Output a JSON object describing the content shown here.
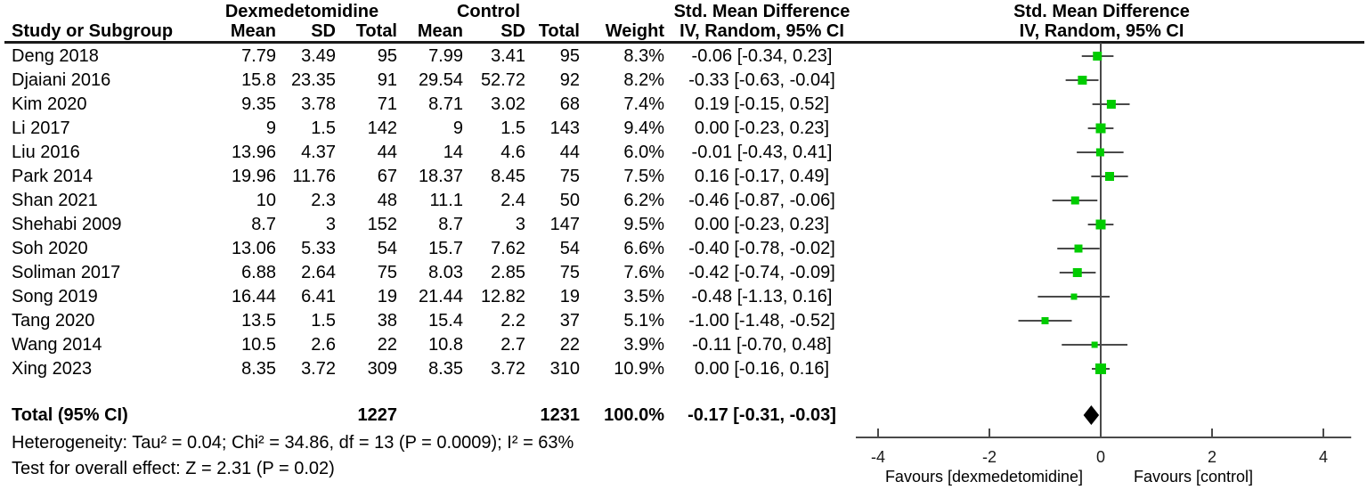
{
  "header": {
    "group1": "Dexmedetomidine",
    "group2": "Control",
    "effect_label": "Std. Mean Difference",
    "method_label": "IV, Random, 95% CI",
    "plot_effect_label": "Std. Mean Difference",
    "plot_method_label": "IV, Random, 95% CI",
    "columns": {
      "study": "Study or Subgroup",
      "mean1": "Mean",
      "sd1": "SD",
      "total1": "Total",
      "mean2": "Mean",
      "sd2": "SD",
      "total2": "Total",
      "weight": "Weight"
    }
  },
  "chart_data": {
    "type": "forest",
    "title": "Std. Mean Difference, IV, Random, 95% CI",
    "x_axis": {
      "ticks": [
        -4,
        -2,
        0,
        2,
        4
      ],
      "xlim": [
        -4.4,
        4.5
      ],
      "zero_line": 0
    },
    "favours_left": "Favours [dexmedetomidine]",
    "favours_right": "Favours [control]",
    "studies": [
      {
        "name": "Deng 2018",
        "mean1": "7.79",
        "sd1": "3.49",
        "n1": "95",
        "mean2": "7.99",
        "sd2": "3.41",
        "n2": "95",
        "weight": "8.3%",
        "weight_pct": 8.3,
        "smd": -0.06,
        "ci_low": -0.34,
        "ci_high": 0.23,
        "ci_label": "-0.06 [-0.34, 0.23]"
      },
      {
        "name": "Djaiani 2016",
        "mean1": "15.8",
        "sd1": "23.35",
        "n1": "91",
        "mean2": "29.54",
        "sd2": "52.72",
        "n2": "92",
        "weight": "8.2%",
        "weight_pct": 8.2,
        "smd": -0.33,
        "ci_low": -0.63,
        "ci_high": -0.04,
        "ci_label": "-0.33 [-0.63, -0.04]"
      },
      {
        "name": "Kim 2020",
        "mean1": "9.35",
        "sd1": "3.78",
        "n1": "71",
        "mean2": "8.71",
        "sd2": "3.02",
        "n2": "68",
        "weight": "7.4%",
        "weight_pct": 7.4,
        "smd": 0.19,
        "ci_low": -0.15,
        "ci_high": 0.52,
        "ci_label": "0.19 [-0.15, 0.52]"
      },
      {
        "name": "Li 2017",
        "mean1": "9",
        "sd1": "1.5",
        "n1": "142",
        "mean2": "9",
        "sd2": "1.5",
        "n2": "143",
        "weight": "9.4%",
        "weight_pct": 9.4,
        "smd": 0.0,
        "ci_low": -0.23,
        "ci_high": 0.23,
        "ci_label": "0.00 [-0.23, 0.23]"
      },
      {
        "name": "Liu 2016",
        "mean1": "13.96",
        "sd1": "4.37",
        "n1": "44",
        "mean2": "14",
        "sd2": "4.6",
        "n2": "44",
        "weight": "6.0%",
        "weight_pct": 6.0,
        "smd": -0.01,
        "ci_low": -0.43,
        "ci_high": 0.41,
        "ci_label": "-0.01 [-0.43, 0.41]"
      },
      {
        "name": "Park 2014",
        "mean1": "19.96",
        "sd1": "11.76",
        "n1": "67",
        "mean2": "18.37",
        "sd2": "8.45",
        "n2": "75",
        "weight": "7.5%",
        "weight_pct": 7.5,
        "smd": 0.16,
        "ci_low": -0.17,
        "ci_high": 0.49,
        "ci_label": "0.16 [-0.17, 0.49]"
      },
      {
        "name": "Shan 2021",
        "mean1": "10",
        "sd1": "2.3",
        "n1": "48",
        "mean2": "11.1",
        "sd2": "2.4",
        "n2": "50",
        "weight": "6.2%",
        "weight_pct": 6.2,
        "smd": -0.46,
        "ci_low": -0.87,
        "ci_high": -0.06,
        "ci_label": "-0.46 [-0.87, -0.06]"
      },
      {
        "name": "Shehabi 2009",
        "mean1": "8.7",
        "sd1": "3",
        "n1": "152",
        "mean2": "8.7",
        "sd2": "3",
        "n2": "147",
        "weight": "9.5%",
        "weight_pct": 9.5,
        "smd": 0.0,
        "ci_low": -0.23,
        "ci_high": 0.23,
        "ci_label": "0.00 [-0.23, 0.23]"
      },
      {
        "name": "Soh 2020",
        "mean1": "13.06",
        "sd1": "5.33",
        "n1": "54",
        "mean2": "15.7",
        "sd2": "7.62",
        "n2": "54",
        "weight": "6.6%",
        "weight_pct": 6.6,
        "smd": -0.4,
        "ci_low": -0.78,
        "ci_high": -0.02,
        "ci_label": "-0.40 [-0.78, -0.02]"
      },
      {
        "name": "Soliman 2017",
        "mean1": "6.88",
        "sd1": "2.64",
        "n1": "75",
        "mean2": "8.03",
        "sd2": "2.85",
        "n2": "75",
        "weight": "7.6%",
        "weight_pct": 7.6,
        "smd": -0.42,
        "ci_low": -0.74,
        "ci_high": -0.09,
        "ci_label": "-0.42 [-0.74, -0.09]"
      },
      {
        "name": "Song 2019",
        "mean1": "16.44",
        "sd1": "6.41",
        "n1": "19",
        "mean2": "21.44",
        "sd2": "12.82",
        "n2": "19",
        "weight": "3.5%",
        "weight_pct": 3.5,
        "smd": -0.48,
        "ci_low": -1.13,
        "ci_high": 0.16,
        "ci_label": "-0.48 [-1.13, 0.16]"
      },
      {
        "name": "Tang 2020",
        "mean1": "13.5",
        "sd1": "1.5",
        "n1": "38",
        "mean2": "15.4",
        "sd2": "2.2",
        "n2": "37",
        "weight": "5.1%",
        "weight_pct": 5.1,
        "smd": -1.0,
        "ci_low": -1.48,
        "ci_high": -0.52,
        "ci_label": "-1.00 [-1.48, -0.52]"
      },
      {
        "name": "Wang 2014",
        "mean1": "10.5",
        "sd1": "2.6",
        "n1": "22",
        "mean2": "10.8",
        "sd2": "2.7",
        "n2": "22",
        "weight": "3.9%",
        "weight_pct": 3.9,
        "smd": -0.11,
        "ci_low": -0.7,
        "ci_high": 0.48,
        "ci_label": "-0.11 [-0.70, 0.48]"
      },
      {
        "name": "Xing 2023",
        "mean1": "8.35",
        "sd1": "3.72",
        "n1": "309",
        "mean2": "8.35",
        "sd2": "3.72",
        "n2": "310",
        "weight": "10.9%",
        "weight_pct": 10.9,
        "smd": 0.0,
        "ci_low": -0.16,
        "ci_high": 0.16,
        "ci_label": "0.00 [-0.16, 0.16]"
      }
    ],
    "total": {
      "label": "Total (95% CI)",
      "n1": "1227",
      "n2": "1231",
      "weight": "100.0%",
      "smd": -0.17,
      "ci_low": -0.31,
      "ci_high": -0.03,
      "ci_label": "-0.17 [-0.31, -0.03]"
    },
    "heterogeneity": "Heterogeneity: Tau² = 0.04; Chi² = 34.86, df = 13 (P = 0.0009); I² = 63%",
    "overall_effect": "Test for overall effect: Z = 2.31 (P = 0.02)",
    "colors": {
      "marker": "#00cc00",
      "ci_line": "#4a4a4a",
      "axis": "#4a4a4a",
      "diamond": "#000000",
      "text": "#000000"
    }
  }
}
